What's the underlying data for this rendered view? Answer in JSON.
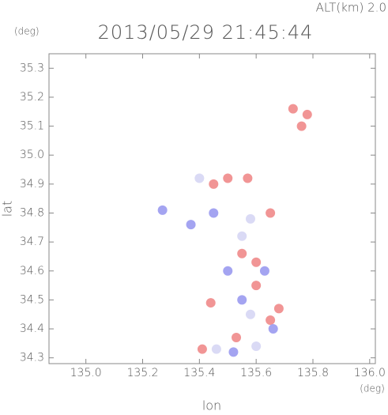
{
  "chart_data": {
    "type": "scatter",
    "title": "2013/05/29 21:45:44",
    "subtitle": "ALT(km) 2.0",
    "y_unit": "(deg)",
    "x_unit": "(deg)",
    "xlabel": "lon",
    "ylabel": "lat",
    "xlim": [
      134.87,
      136.02
    ],
    "ylim": [
      34.28,
      35.35
    ],
    "xticks": [
      {
        "value": 135,
        "label": "135.0"
      },
      135.2,
      135.4,
      135.6,
      135.8,
      {
        "value": 136,
        "label": "136.0"
      }
    ],
    "yticks": [
      34.3,
      34.4,
      34.5,
      34.6,
      34.7,
      34.8,
      34.9,
      {
        "value": 35,
        "label": "35.0"
      },
      35.1,
      35.2,
      35.3
    ],
    "grid": false,
    "series": [
      {
        "color": "#f08a8a",
        "x": [
          135.73,
          135.78,
          135.76,
          135.45,
          135.5,
          135.57,
          135.65,
          135.55,
          135.6,
          135.6,
          135.68,
          135.65,
          135.44,
          135.53,
          135.41
        ],
        "y": [
          35.16,
          35.14,
          35.1,
          34.9,
          34.92,
          34.92,
          34.8,
          34.66,
          34.63,
          34.55,
          34.47,
          34.43,
          34.49,
          34.37,
          34.33
        ]
      },
      {
        "color": "#9a9af0",
        "x": [
          135.27,
          135.45,
          135.37,
          135.5,
          135.63,
          135.55,
          135.66,
          135.52
        ],
        "y": [
          34.81,
          34.8,
          34.76,
          34.6,
          34.6,
          34.5,
          34.4,
          34.32
        ]
      },
      {
        "color": "#d6d6f4",
        "x": [
          135.4,
          135.55,
          135.58,
          135.46,
          135.6,
          135.58
        ],
        "y": [
          34.92,
          34.72,
          34.78,
          34.33,
          34.34,
          34.45
        ]
      }
    ]
  }
}
